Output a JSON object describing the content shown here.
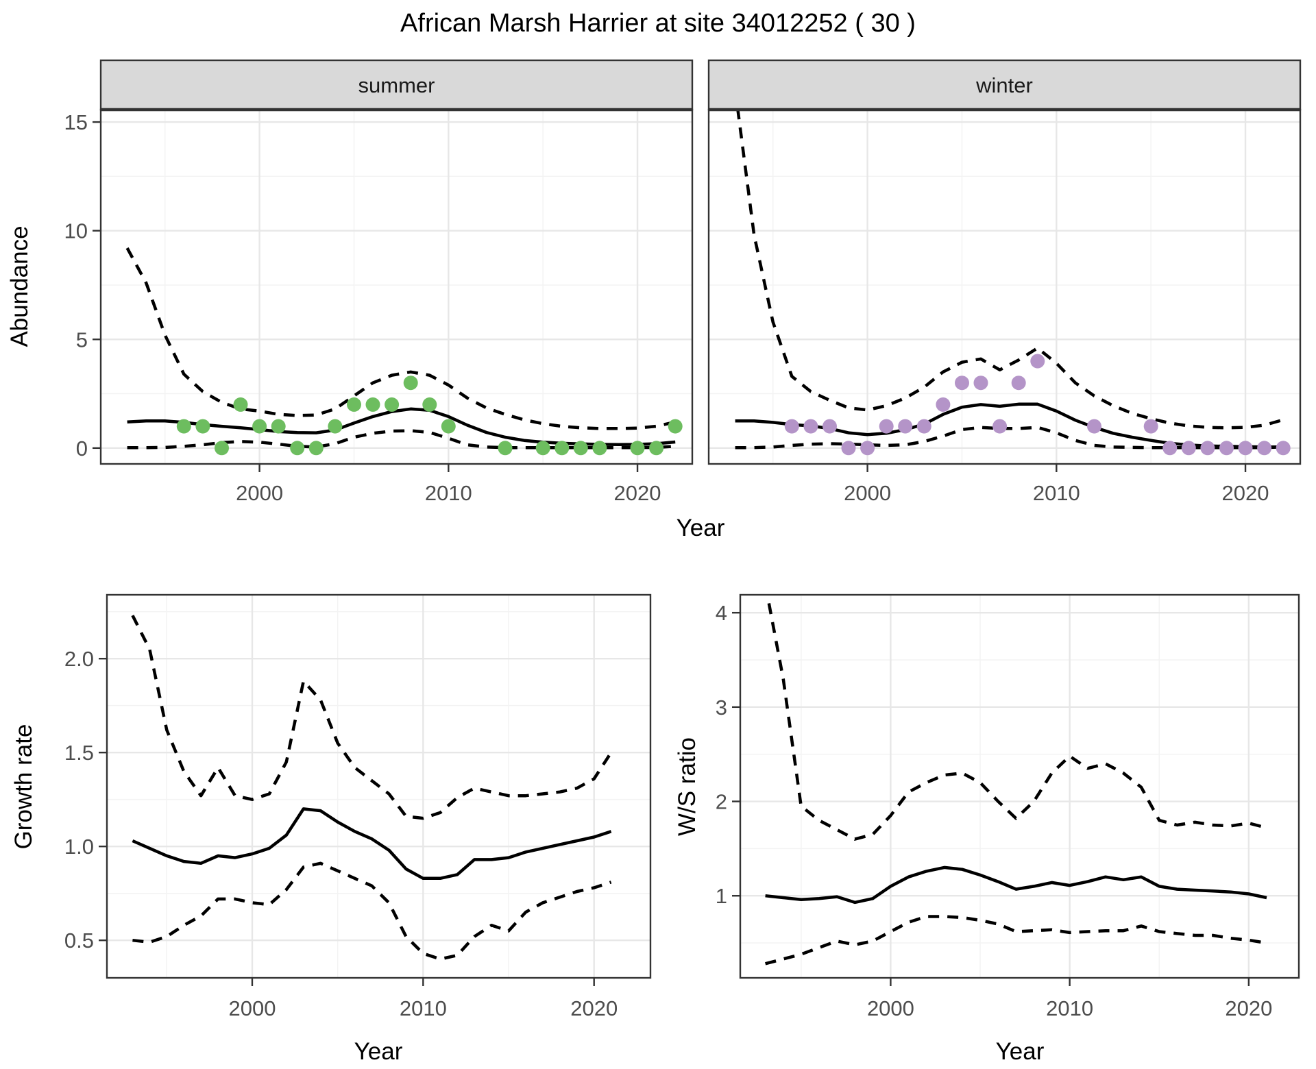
{
  "title": "African Marsh Harrier at site 34012252 ( 30 )",
  "colors": {
    "summer_points": "#6DBD5F",
    "winter_points": "#B494C8",
    "line": "#000000",
    "panel_border": "#333333",
    "strip_background": "#D9D9D9",
    "grid_major": "#E7E7E7",
    "grid_minor": "#F3F3F3",
    "tick_text": "#4D4D4D"
  },
  "chart_data": {
    "type": "line",
    "suptitle": "African Marsh Harrier at site 34012252 ( 30 )",
    "legend_position": "none",
    "grid": "on",
    "panels": [
      {
        "key": "abundance_summer",
        "facet_label": "summer",
        "xlabel": "Year",
        "ylabel": "Abundance",
        "xlim": [
          1991.6,
          2022.9
        ],
        "ylim": [
          -0.73,
          15.57
        ],
        "x_ticks": [
          2000,
          2010,
          2020
        ],
        "x_tick_labels": [
          "2000",
          "2010",
          "2020"
        ],
        "x_minor": [
          1995,
          2005,
          2015
        ],
        "y_ticks": [
          0,
          5,
          10,
          15
        ],
        "y_tick_labels": [
          "0",
          "5",
          "10",
          "15"
        ],
        "y_minor": [
          2.5,
          7.5,
          12.5
        ],
        "x": [
          1993,
          1994,
          1995,
          1996,
          1997,
          1998,
          1999,
          2000,
          2001,
          2002,
          2003,
          2004,
          2005,
          2006,
          2007,
          2008,
          2009,
          2010,
          2011,
          2012,
          2013,
          2014,
          2015,
          2016,
          2017,
          2018,
          2019,
          2020,
          2021,
          2022
        ],
        "series": [
          {
            "name": "fitted",
            "style": "solid",
            "values": [
              1.2,
              1.25,
              1.25,
              1.18,
              1.08,
              1.0,
              0.93,
              0.85,
              0.76,
              0.71,
              0.7,
              0.83,
              1.15,
              1.45,
              1.68,
              1.8,
              1.74,
              1.45,
              1.05,
              0.72,
              0.5,
              0.35,
              0.27,
              0.22,
              0.19,
              0.17,
              0.16,
              0.17,
              0.2,
              0.28
            ]
          },
          {
            "name": "upper_ci",
            "style": "dashed",
            "values": [
              9.2,
              7.6,
              5.2,
              3.4,
              2.6,
              2.1,
              1.8,
              1.7,
              1.55,
              1.5,
              1.52,
              1.8,
              2.4,
              3.0,
              3.35,
              3.5,
              3.35,
              2.9,
              2.3,
              1.85,
              1.55,
              1.3,
              1.12,
              1.0,
              0.93,
              0.9,
              0.9,
              0.92,
              1.0,
              1.2
            ]
          },
          {
            "name": "lower_ci",
            "style": "dashed",
            "values": [
              0.02,
              0.02,
              0.03,
              0.08,
              0.15,
              0.25,
              0.3,
              0.27,
              0.18,
              0.08,
              0.05,
              0.2,
              0.5,
              0.68,
              0.78,
              0.8,
              0.72,
              0.45,
              0.15,
              0.05,
              0.02,
              0.02,
              0.02,
              0.02,
              0.02,
              0.02,
              0.02,
              0.02,
              0.03,
              0.08
            ]
          }
        ],
        "points": {
          "name": "observed-counts-summer",
          "color": "#6DBD5F",
          "x": [
            1996,
            1997,
            1998,
            1999,
            2000,
            2001,
            2002,
            2003,
            2004,
            2005,
            2006,
            2007,
            2008,
            2009,
            2010,
            2013,
            2015,
            2016,
            2017,
            2018,
            2020,
            2021,
            2022
          ],
          "y": [
            1,
            1,
            0,
            2,
            1,
            1,
            0,
            0,
            1,
            2,
            2,
            2,
            3,
            2,
            1,
            0,
            0,
            0,
            0,
            0,
            0,
            0,
            1
          ]
        }
      },
      {
        "key": "abundance_winter",
        "facet_label": "winter",
        "xlabel": "Year",
        "ylabel": "Abundance",
        "xlim": [
          1991.6,
          2022.9
        ],
        "ylim": [
          -0.73,
          15.57
        ],
        "x_ticks": [
          2000,
          2010,
          2020
        ],
        "x_tick_labels": [
          "2000",
          "2010",
          "2020"
        ],
        "x_minor": [
          1995,
          2005,
          2015
        ],
        "y_ticks": [
          0,
          5,
          10,
          15
        ],
        "y_tick_labels": [
          "0",
          "5",
          "10",
          "15"
        ],
        "y_minor": [
          2.5,
          7.5,
          12.5
        ],
        "x": [
          1993,
          1994,
          1995,
          1996,
          1997,
          1998,
          1999,
          2000,
          2001,
          2002,
          2003,
          2004,
          2005,
          2006,
          2007,
          2008,
          2009,
          2010,
          2011,
          2012,
          2013,
          2014,
          2015,
          2016,
          2017,
          2018,
          2019,
          2020,
          2021,
          2022
        ],
        "series": [
          {
            "name": "fitted",
            "style": "solid",
            "values": [
              1.25,
              1.25,
              1.18,
              1.08,
              1.02,
              0.9,
              0.7,
              0.62,
              0.68,
              0.85,
              1.1,
              1.55,
              1.88,
              2.0,
              1.92,
              2.02,
              2.02,
              1.7,
              1.28,
              0.95,
              0.68,
              0.5,
              0.35,
              0.22,
              0.14,
              0.1,
              0.08,
              0.06,
              0.05,
              0.05
            ]
          },
          {
            "name": "upper_ci",
            "style": "dashed",
            "values": [
              16.5,
              9.8,
              5.8,
              3.3,
              2.6,
              2.2,
              1.85,
              1.75,
              1.95,
              2.3,
              2.8,
              3.5,
              3.95,
              4.1,
              3.6,
              4.05,
              4.6,
              3.9,
              3.0,
              2.4,
              1.95,
              1.6,
              1.35,
              1.15,
              1.02,
              0.95,
              0.93,
              0.95,
              1.05,
              1.3
            ]
          },
          {
            "name": "lower_ci",
            "style": "dashed",
            "values": [
              0.02,
              0.02,
              0.05,
              0.12,
              0.18,
              0.2,
              0.18,
              0.15,
              0.12,
              0.15,
              0.3,
              0.55,
              0.85,
              0.95,
              0.9,
              0.9,
              0.95,
              0.7,
              0.35,
              0.12,
              0.05,
              0.03,
              0.02,
              0.02,
              0.02,
              0.02,
              0.02,
              0.02,
              0.02,
              0.05
            ]
          }
        ],
        "points": {
          "name": "observed-counts-winter",
          "color": "#B494C8",
          "x": [
            1996,
            1997,
            1998,
            1999,
            2000,
            2001,
            2002,
            2003,
            2004,
            2005,
            2006,
            2007,
            2008,
            2009,
            2012,
            2015,
            2016,
            2017,
            2018,
            2019,
            2020,
            2021,
            2022
          ],
          "y": [
            1,
            1,
            1,
            0,
            0,
            1,
            1,
            1,
            2,
            3,
            3,
            1,
            3,
            4,
            1,
            1,
            0,
            0,
            0,
            0,
            0,
            0,
            0
          ]
        }
      },
      {
        "key": "growth_rate",
        "facet_label": null,
        "xlabel": "Year",
        "ylabel": "Growth rate",
        "xlim": [
          1991.5,
          2023.3
        ],
        "ylim": [
          0.3,
          2.34
        ],
        "x_ticks": [
          2000,
          2010,
          2020
        ],
        "x_tick_labels": [
          "2000",
          "2010",
          "2020"
        ],
        "x_minor": [
          1995,
          2005,
          2015
        ],
        "y_ticks": [
          0.5,
          1.0,
          1.5,
          2.0
        ],
        "y_tick_labels": [
          "0.5",
          "1.0",
          "1.5",
          "2.0"
        ],
        "y_minor": [
          0.75,
          1.25,
          1.75,
          2.25
        ],
        "x": [
          1993,
          1994,
          1995,
          1996,
          1997,
          1998,
          1999,
          2000,
          2001,
          2002,
          2003,
          2004,
          2005,
          2006,
          2007,
          2008,
          2009,
          2010,
          2011,
          2012,
          2013,
          2014,
          2015,
          2016,
          2017,
          2018,
          2019,
          2020,
          2021
        ],
        "series": [
          {
            "name": "fitted",
            "style": "solid",
            "values": [
              1.03,
              0.99,
              0.95,
              0.92,
              0.91,
              0.95,
              0.94,
              0.96,
              0.99,
              1.06,
              1.2,
              1.19,
              1.13,
              1.08,
              1.04,
              0.98,
              0.88,
              0.83,
              0.83,
              0.85,
              0.93,
              0.93,
              0.94,
              0.97,
              0.99,
              1.01,
              1.03,
              1.05,
              1.08
            ]
          },
          {
            "name": "upper_ci",
            "style": "dashed",
            "values": [
              2.23,
              2.05,
              1.62,
              1.4,
              1.27,
              1.42,
              1.27,
              1.25,
              1.28,
              1.45,
              1.88,
              1.78,
              1.55,
              1.42,
              1.35,
              1.28,
              1.16,
              1.15,
              1.18,
              1.26,
              1.31,
              1.29,
              1.27,
              1.27,
              1.28,
              1.29,
              1.31,
              1.36,
              1.5
            ]
          },
          {
            "name": "lower_ci",
            "style": "dashed",
            "values": [
              0.5,
              0.49,
              0.52,
              0.58,
              0.63,
              0.72,
              0.72,
              0.7,
              0.69,
              0.77,
              0.89,
              0.91,
              0.87,
              0.83,
              0.79,
              0.7,
              0.52,
              0.43,
              0.4,
              0.42,
              0.52,
              0.58,
              0.55,
              0.65,
              0.7,
              0.73,
              0.76,
              0.78,
              0.81
            ]
          }
        ],
        "points": null
      },
      {
        "key": "ws_ratio",
        "facet_label": null,
        "xlabel": "Year",
        "ylabel": "W/S ratio",
        "xlim": [
          1991.6,
          2022.8
        ],
        "ylim": [
          0.13,
          4.19
        ],
        "x_ticks": [
          2000,
          2010,
          2020
        ],
        "x_tick_labels": [
          "2000",
          "2010",
          "2020"
        ],
        "x_minor": [
          1995,
          2005,
          2015
        ],
        "y_ticks": [
          1,
          2,
          3,
          4
        ],
        "y_tick_labels": [
          "1",
          "2",
          "3",
          "4"
        ],
        "y_minor": [
          0.5,
          1.5,
          2.5,
          3.5
        ],
        "x": [
          1993,
          1994,
          1995,
          1996,
          1997,
          1998,
          1999,
          2000,
          2001,
          2002,
          2003,
          2004,
          2005,
          2006,
          2007,
          2008,
          2009,
          2010,
          2011,
          2012,
          2013,
          2014,
          2015,
          2016,
          2017,
          2018,
          2019,
          2020,
          2021
        ],
        "series": [
          {
            "name": "fitted",
            "style": "solid",
            "values": [
              1.0,
              0.98,
              0.96,
              0.97,
              0.99,
              0.93,
              0.97,
              1.1,
              1.2,
              1.26,
              1.3,
              1.28,
              1.22,
              1.15,
              1.07,
              1.1,
              1.14,
              1.11,
              1.15,
              1.2,
              1.17,
              1.2,
              1.1,
              1.07,
              1.06,
              1.05,
              1.04,
              1.02,
              0.98
            ]
          },
          {
            "name": "upper_ci",
            "style": "dashed",
            "values": [
              4.3,
              3.3,
              1.95,
              1.8,
              1.7,
              1.6,
              1.65,
              1.85,
              2.1,
              2.2,
              2.28,
              2.3,
              2.2,
              2.0,
              1.82,
              2.0,
              2.3,
              2.48,
              2.35,
              2.4,
              2.3,
              2.15,
              1.8,
              1.75,
              1.78,
              1.75,
              1.74,
              1.77,
              1.72
            ]
          },
          {
            "name": "lower_ci",
            "style": "dashed",
            "values": [
              0.28,
              0.33,
              0.38,
              0.45,
              0.52,
              0.48,
              0.52,
              0.62,
              0.72,
              0.78,
              0.78,
              0.77,
              0.74,
              0.7,
              0.62,
              0.63,
              0.64,
              0.61,
              0.62,
              0.63,
              0.63,
              0.68,
              0.62,
              0.6,
              0.58,
              0.58,
              0.55,
              0.53,
              0.5
            ]
          }
        ],
        "points": null
      }
    ]
  }
}
